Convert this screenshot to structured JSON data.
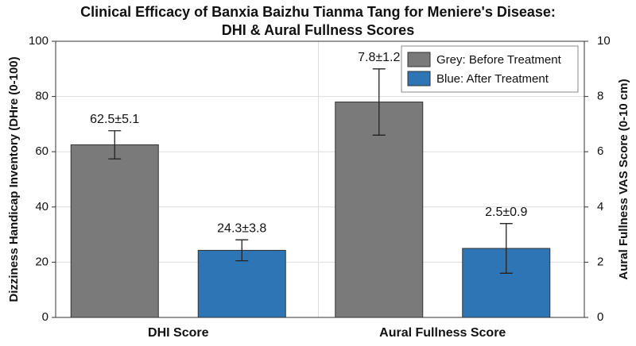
{
  "chart_data": {
    "type": "bar",
    "title": [
      "Clinical Efficacy of Banxia Baizhu Tianma Tang for Meniere's Disease:",
      "DHI & Aural Fullness Scores"
    ],
    "ylabel": "Dizziness Handicap Inventory (DHre (0-100)",
    "y2label": "Aural Fullness VAS Score (0-10 cm)",
    "categories": [
      "DHI Score",
      "Aural Fullness Score"
    ],
    "axes": [
      "y",
      "y2"
    ],
    "series": [
      {
        "name": "Grey: Before Treatment",
        "color": "#7a7a7a",
        "values": [
          62.5,
          7.8
        ],
        "errors": [
          5.1,
          1.2
        ],
        "value_labels": [
          "62.5±5.1",
          "7.8±1.2"
        ]
      },
      {
        "name": "Blue: After Treatment",
        "color": "#2e75b6",
        "values": [
          24.3,
          2.5
        ],
        "errors": [
          3.8,
          0.9
        ],
        "value_labels": [
          "24.3±3.8",
          "2.5±0.9"
        ]
      }
    ],
    "ylim": [
      0,
      100
    ],
    "yticks": [
      0,
      20,
      40,
      60,
      80,
      100
    ],
    "y2lim": [
      0,
      10
    ],
    "y2ticks": [
      0,
      2,
      4,
      6,
      8,
      10
    ],
    "grid": true,
    "legend": "upper right"
  }
}
